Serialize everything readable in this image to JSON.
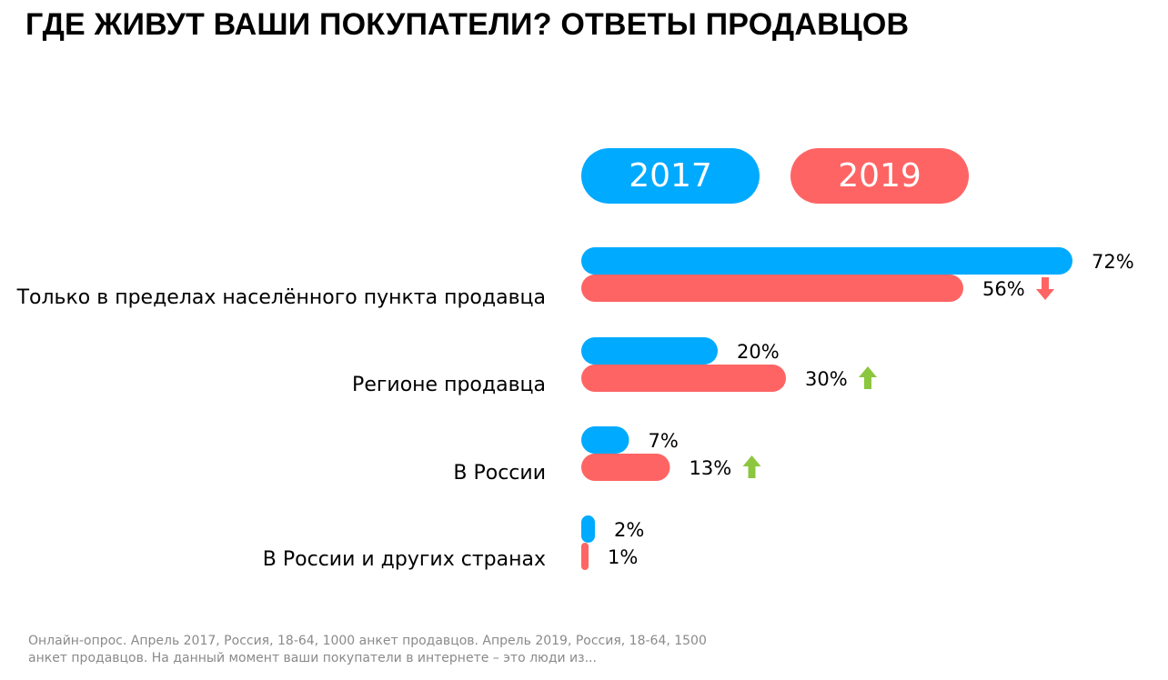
{
  "title": "ГДЕ ЖИВУТ ВАШИ ПОКУПАТЕЛИ? ОТВЕТЫ ПРОДАВЦОВ",
  "footnote": "Онлайн-опрос. Апрель 2017, Россия, 18-64, 1000 анкет продавцов. Апрель 2019, Россия, 18-64, 1500 анкет продавцов. На данный момент ваши покупатели в интернете – это люди из...",
  "colors": {
    "series_2017": "#00AAFF",
    "series_2019": "#FF6464",
    "arrow_up": "#8CC63F",
    "arrow_down": "#FF6464"
  },
  "chart_data": {
    "type": "bar",
    "orientation": "horizontal",
    "unit": "%",
    "xlim": [
      0,
      100
    ],
    "categories": [
      "Только в пределах населённого пункта продавца",
      "Регионе продавца",
      "В России",
      "В России и других странах"
    ],
    "series": [
      {
        "name": "2017",
        "values": [
          72,
          20,
          7,
          2
        ],
        "labels": [
          "72%",
          "20%",
          "7%",
          "2%"
        ]
      },
      {
        "name": "2019",
        "values": [
          56,
          30,
          13,
          1
        ],
        "labels": [
          "56%",
          "30%",
          "13%",
          "1%"
        ]
      }
    ],
    "change_indicators": [
      "down-arrow-icon",
      "up-arrow-icon",
      "up-arrow-icon",
      ""
    ],
    "legend": "top"
  }
}
